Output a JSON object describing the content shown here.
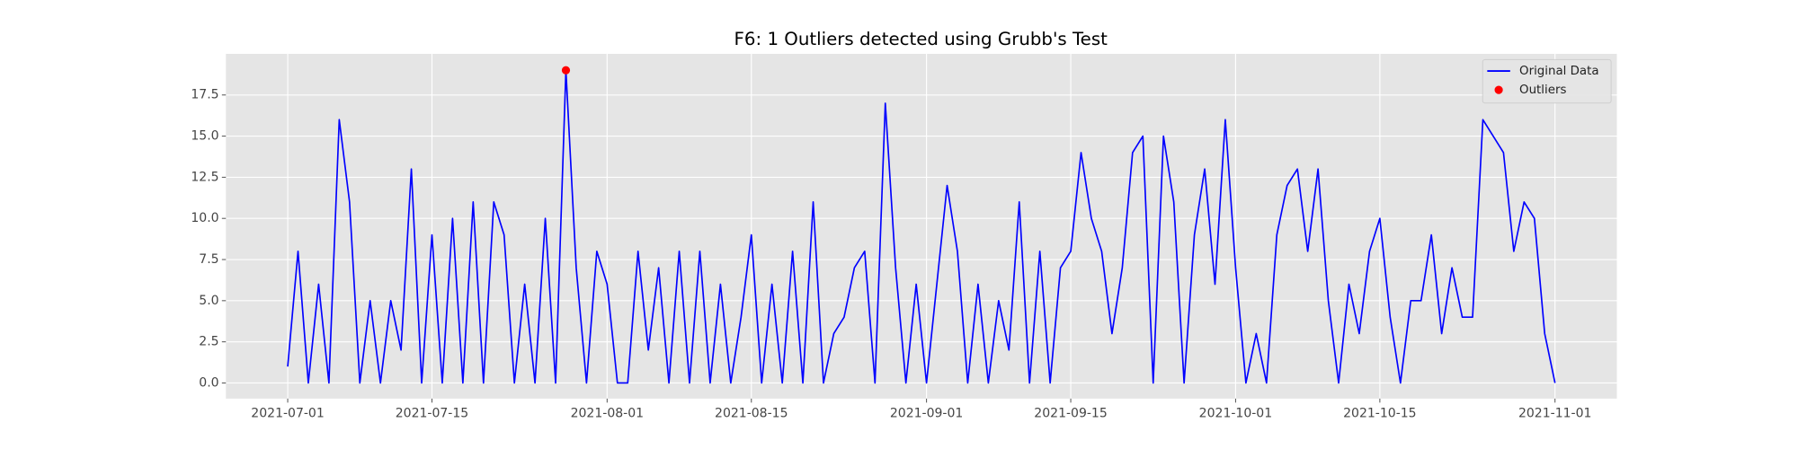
{
  "chart_data": {
    "type": "line",
    "title": "F6: 1 Outliers detected using Grubb's Test",
    "x": [
      "2021-07-01",
      "2021-07-02",
      "2021-07-03",
      "2021-07-04",
      "2021-07-05",
      "2021-07-06",
      "2021-07-07",
      "2021-07-08",
      "2021-07-09",
      "2021-07-10",
      "2021-07-11",
      "2021-07-12",
      "2021-07-13",
      "2021-07-14",
      "2021-07-15",
      "2021-07-16",
      "2021-07-17",
      "2021-07-18",
      "2021-07-19",
      "2021-07-20",
      "2021-07-21",
      "2021-07-22",
      "2021-07-23",
      "2021-07-24",
      "2021-07-25",
      "2021-07-26",
      "2021-07-27",
      "2021-07-28",
      "2021-07-29",
      "2021-07-30",
      "2021-07-31",
      "2021-08-01",
      "2021-08-02",
      "2021-08-03",
      "2021-08-04",
      "2021-08-05",
      "2021-08-06",
      "2021-08-07",
      "2021-08-08",
      "2021-08-09",
      "2021-08-10",
      "2021-08-11",
      "2021-08-12",
      "2021-08-13",
      "2021-08-14",
      "2021-08-15",
      "2021-08-16",
      "2021-08-17",
      "2021-08-18",
      "2021-08-19",
      "2021-08-20",
      "2021-08-21",
      "2021-08-22",
      "2021-08-23",
      "2021-08-24",
      "2021-08-25",
      "2021-08-26",
      "2021-08-27",
      "2021-08-28",
      "2021-08-29",
      "2021-08-30",
      "2021-08-31",
      "2021-09-01",
      "2021-09-02",
      "2021-09-03",
      "2021-09-04",
      "2021-09-05",
      "2021-09-06",
      "2021-09-07",
      "2021-09-08",
      "2021-09-09",
      "2021-09-10",
      "2021-09-11",
      "2021-09-12",
      "2021-09-13",
      "2021-09-14",
      "2021-09-15",
      "2021-09-16",
      "2021-09-17",
      "2021-09-18",
      "2021-09-19",
      "2021-09-20",
      "2021-09-21",
      "2021-09-22",
      "2021-09-23",
      "2021-09-24",
      "2021-09-25",
      "2021-09-26",
      "2021-09-27",
      "2021-09-28",
      "2021-09-29",
      "2021-09-30",
      "2021-10-01",
      "2021-10-02",
      "2021-10-03",
      "2021-10-04",
      "2021-10-05",
      "2021-10-06",
      "2021-10-07",
      "2021-10-08",
      "2021-10-09",
      "2021-10-10",
      "2021-10-11",
      "2021-10-12",
      "2021-10-13",
      "2021-10-14",
      "2021-10-15",
      "2021-10-16",
      "2021-10-17",
      "2021-10-18",
      "2021-10-19",
      "2021-10-20",
      "2021-10-21",
      "2021-10-22",
      "2021-10-23",
      "2021-10-24",
      "2021-10-25",
      "2021-10-26",
      "2021-10-27",
      "2021-10-28",
      "2021-10-29",
      "2021-10-30",
      "2021-10-31",
      "2021-11-01"
    ],
    "series": [
      {
        "name": "Original Data",
        "color": "#0000ff",
        "style": "line",
        "values": [
          1,
          8,
          0,
          6,
          0,
          16,
          11,
          0,
          5,
          0,
          5,
          2,
          13,
          0,
          9,
          0,
          10,
          0,
          11,
          0,
          11,
          9,
          0,
          6,
          0,
          10,
          0,
          19,
          7,
          0,
          8,
          6,
          0,
          0,
          8,
          2,
          7,
          0,
          8,
          0,
          8,
          0,
          6,
          0,
          4,
          9,
          0,
          6,
          0,
          8,
          0,
          11,
          0,
          3,
          4,
          7,
          8,
          0,
          17,
          7,
          0,
          6,
          0,
          6,
          12,
          8,
          0,
          6,
          0,
          5,
          2,
          11,
          0,
          8,
          0,
          7,
          8,
          14,
          10,
          8,
          3,
          7,
          14,
          15,
          0,
          15,
          11,
          0,
          9,
          13,
          6,
          16,
          7,
          0,
          3,
          0,
          9,
          12,
          13,
          8,
          13,
          5,
          0,
          6,
          3,
          8,
          10,
          4,
          0,
          5,
          5,
          9,
          3,
          7,
          4,
          4,
          16,
          15,
          14,
          8,
          11,
          10,
          3,
          0
        ]
      },
      {
        "name": "Outliers",
        "color": "#ff0000",
        "style": "marker",
        "x": [
          "2021-07-28"
        ],
        "values": [
          19
        ]
      }
    ],
    "xlim": [
      "2021-06-25",
      "2021-11-07"
    ],
    "xticks": [
      "2021-07-01",
      "2021-07-15",
      "2021-08-01",
      "2021-08-15",
      "2021-09-01",
      "2021-09-15",
      "2021-10-01",
      "2021-10-15",
      "2021-11-01"
    ],
    "ylim": [
      -0.95,
      20
    ],
    "yticks": [
      {
        "value": 0,
        "label": "0.0"
      },
      2.5,
      {
        "value": 5,
        "label": "5.0"
      },
      7.5,
      {
        "value": 10,
        "label": "10.0"
      },
      12.5,
      {
        "value": 15,
        "label": "15.0"
      },
      17.5
    ],
    "grid": true,
    "legend": "upper right"
  }
}
